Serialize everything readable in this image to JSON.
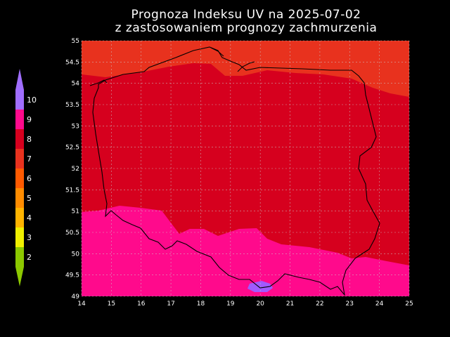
{
  "title": {
    "line1": "Prognoza Indeksu UV na 2025-07-02",
    "line2": "z zastosowaniem prognozy zachmurzenia"
  },
  "map": {
    "lon_range": [
      14,
      25
    ],
    "lat_range": [
      49,
      55
    ],
    "lon_ticks": [
      "14",
      "15",
      "16",
      "17",
      "18",
      "19",
      "20",
      "21",
      "22",
      "23",
      "24",
      "25"
    ],
    "lat_ticks": [
      "55",
      "54.5",
      "54",
      "53.5",
      "53",
      "52.5",
      "52",
      "51.5",
      "51",
      "50.5",
      "50",
      "49.5",
      "49"
    ],
    "grid": true,
    "zones": [
      {
        "uv": 7,
        "color": "#e8321e"
      },
      {
        "uv": 8,
        "color": "#d6001e"
      },
      {
        "uv": 9,
        "color": "#ff0a8c"
      },
      {
        "uv": 10,
        "color": "#a05aff"
      }
    ]
  },
  "legend": {
    "items": [
      {
        "label": "10",
        "color": "#a06eff"
      },
      {
        "label": "9",
        "color": "#ff0a8c"
      },
      {
        "label": "8",
        "color": "#d6001e"
      },
      {
        "label": "7",
        "color": "#e8321e"
      },
      {
        "label": "6",
        "color": "#ff5a00"
      },
      {
        "label": "5",
        "color": "#ff8c00"
      },
      {
        "label": "4",
        "color": "#ffb400"
      },
      {
        "label": "3",
        "color": "#f0f000"
      },
      {
        "label": "2",
        "color": "#8cc800"
      }
    ]
  }
}
